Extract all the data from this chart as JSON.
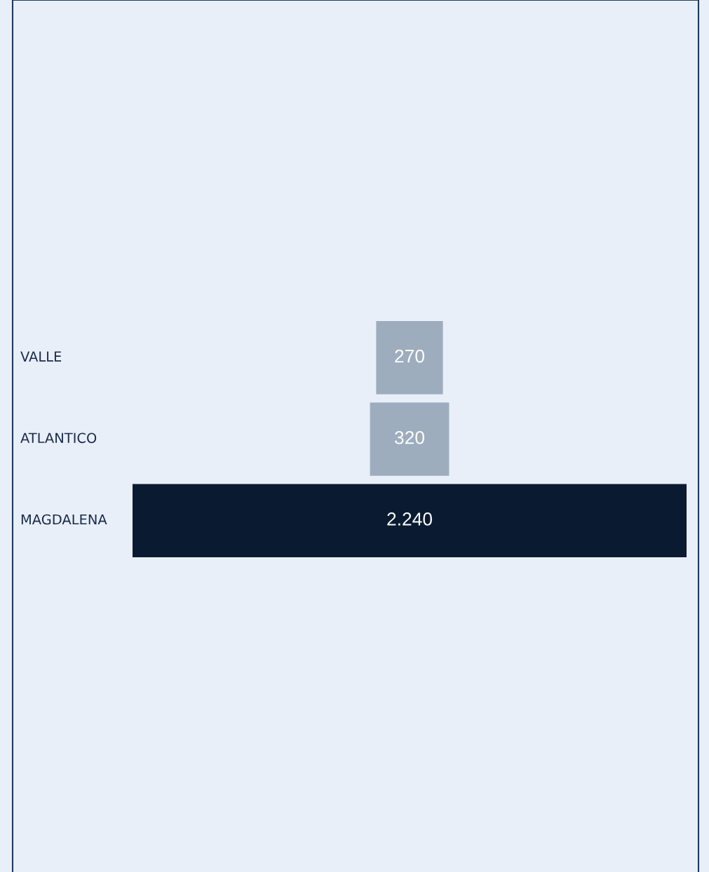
{
  "chart_data": {
    "type": "other",
    "categories": [
      "VALLE",
      "ATLANTICO",
      "MAGDALENA"
    ],
    "values": [
      270,
      320,
      2240
    ],
    "value_labels": [
      "270",
      "320",
      "2.240"
    ],
    "colors": [
      "#9eadbd",
      "#9eadbd",
      "#0a1b31"
    ]
  }
}
